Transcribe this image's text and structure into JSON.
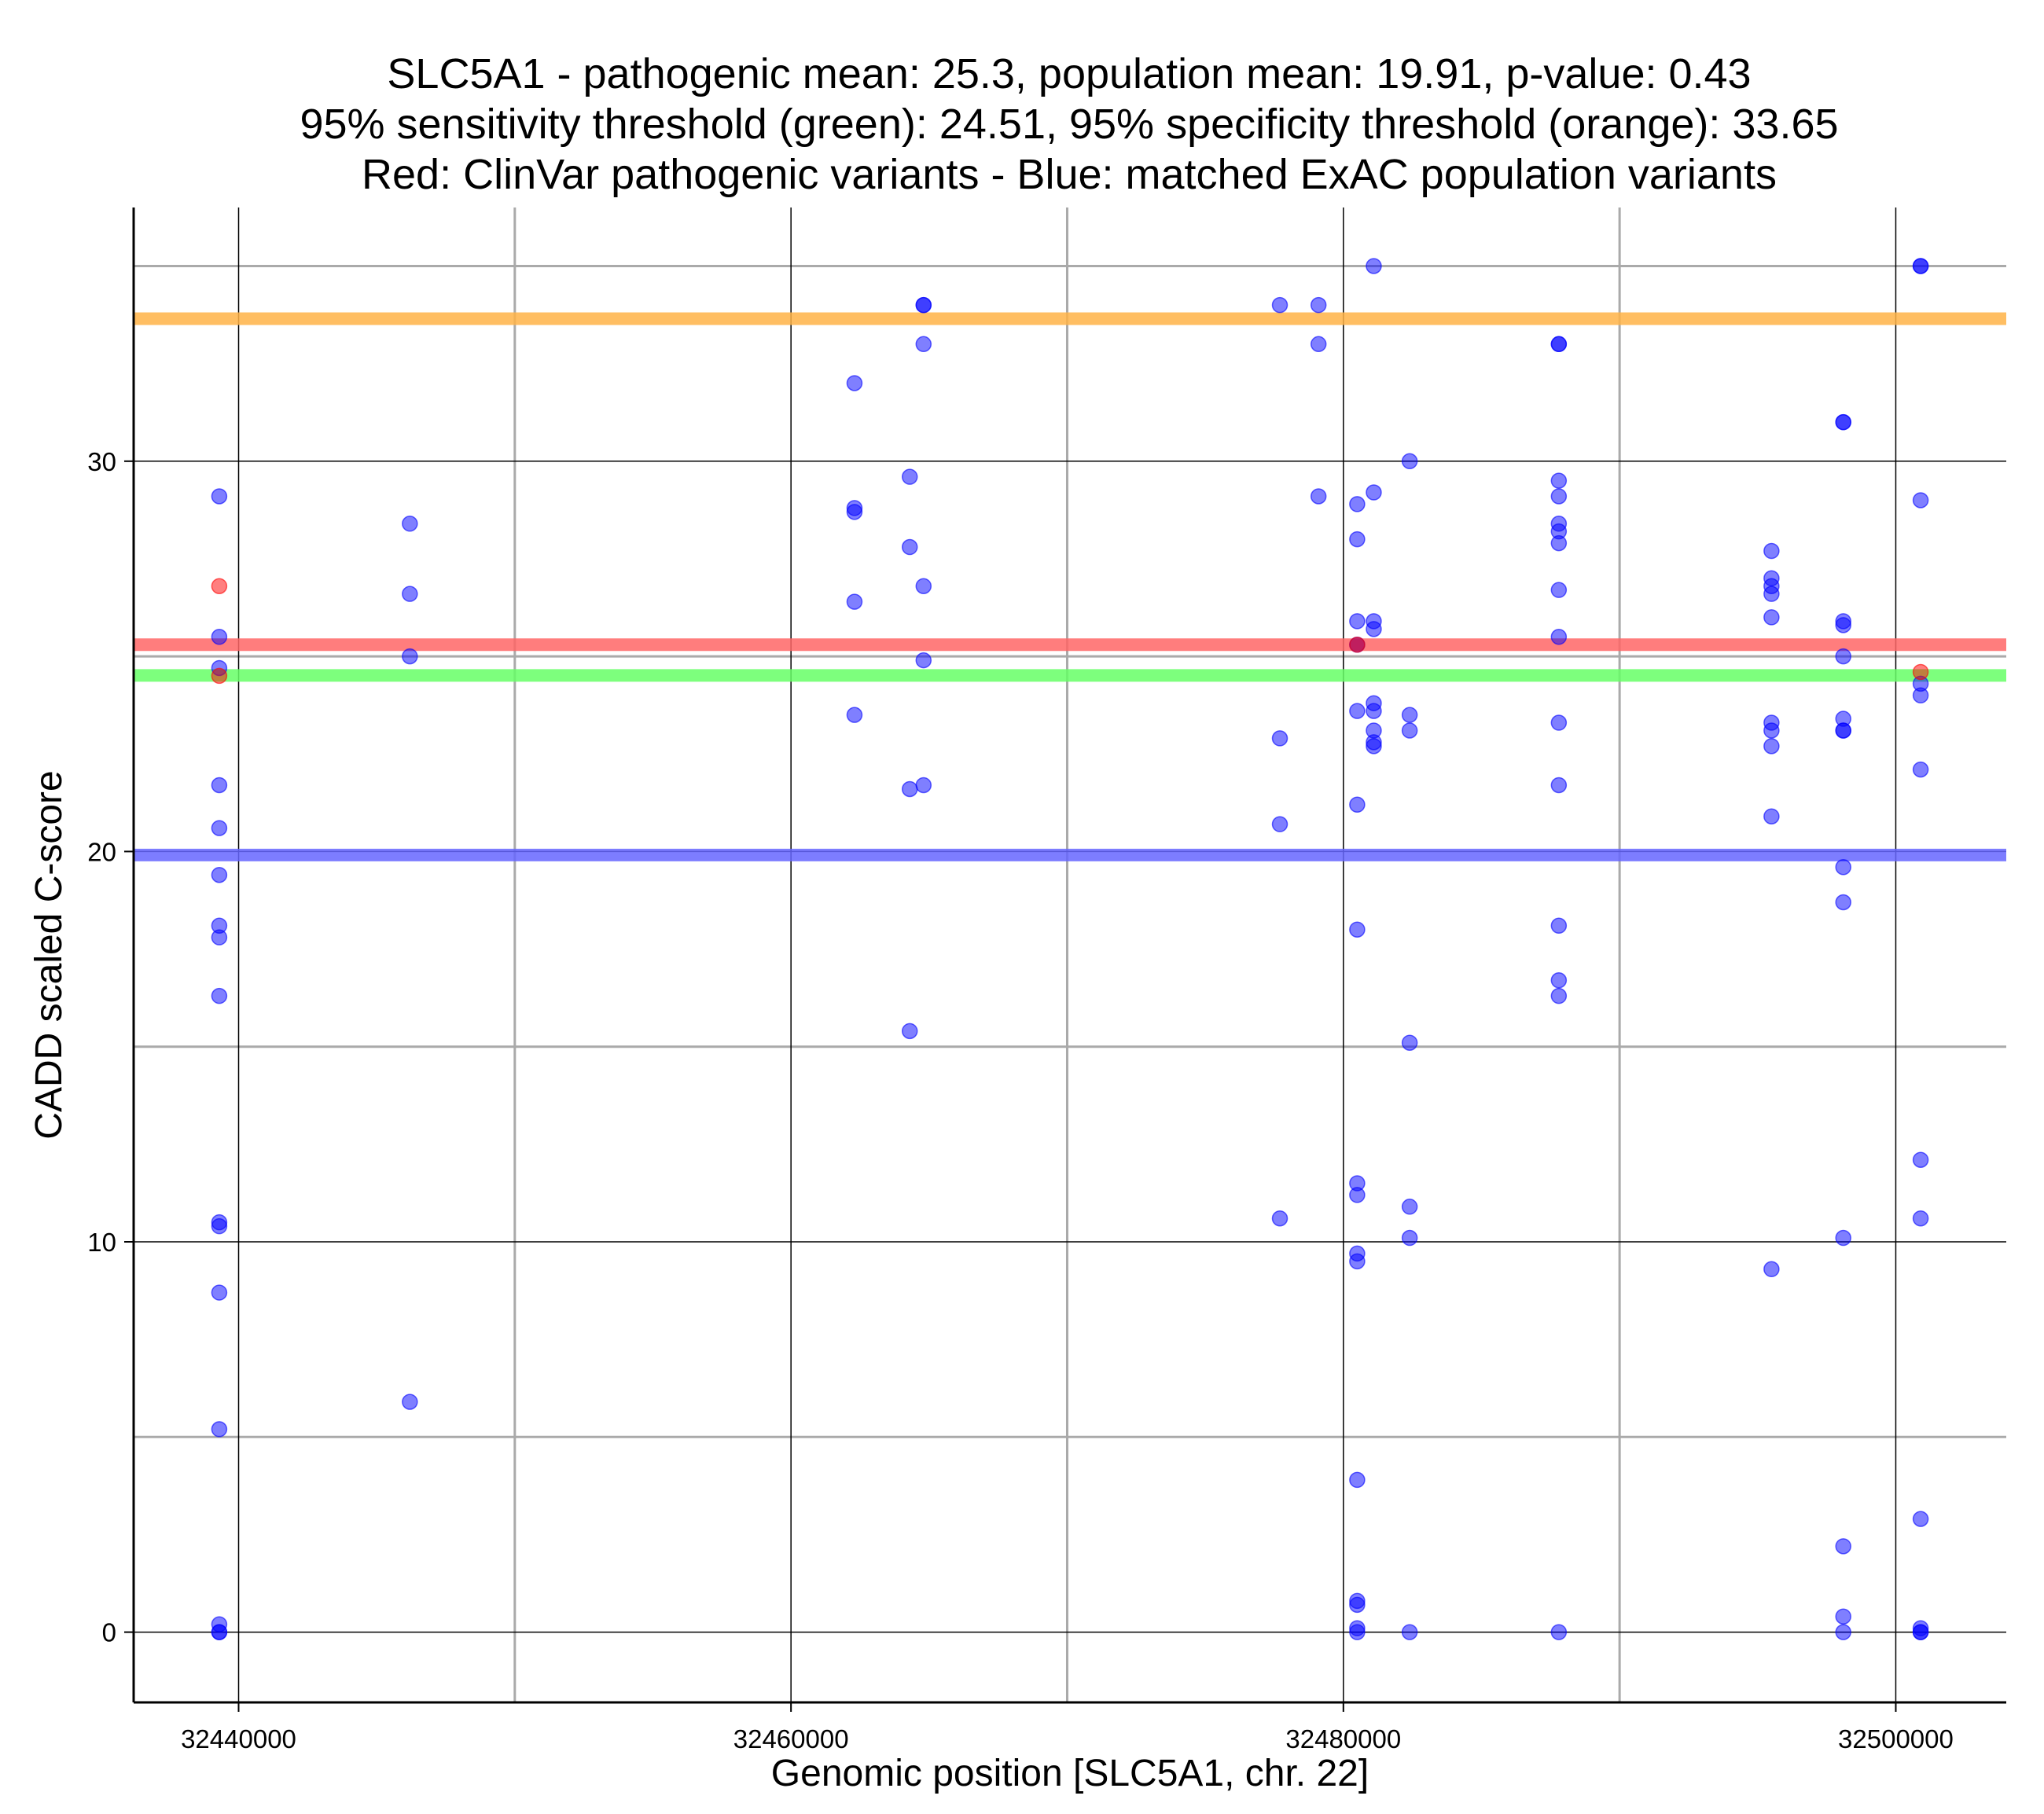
{
  "chart_data": {
    "type": "scatter",
    "title": [
      "SLC5A1 - pathogenic mean: 25.3, population mean: 19.91, p-value: 0.43",
      "95% sensitivity threshold (green): 24.51, 95% specificity threshold (orange): 33.65",
      "Red: ClinVar pathogenic variants - Blue: matched ExAC population variants"
    ],
    "xlabel": "Genomic position [SLC5A1, chr. 22]",
    "ylabel": "CADD scaled C-score",
    "xlim": [
      32436200,
      32504000
    ],
    "ylim": [
      -1.8,
      36.5
    ],
    "x_ticks": [
      32440000,
      32460000,
      32480000,
      32500000
    ],
    "x_tick_labels": [
      "32440000",
      "32460000",
      "32480000",
      "32500000"
    ],
    "y_ticks": [
      0,
      10,
      20,
      30
    ],
    "y_tick_labels": [
      "0",
      "10",
      "20",
      "30"
    ],
    "grid": true,
    "colors": {
      "population": "#0000ff",
      "pathogenic": "#ff0000",
      "sensitivity": "#00ee00",
      "specificity": "#ff9900",
      "major_grid": "#000000",
      "minor_grid": "#aaaaaa"
    },
    "reference_lines": [
      {
        "y": 33.65,
        "color": "#ffb347"
      },
      {
        "y": 25.3,
        "color": "#ff6666"
      },
      {
        "y": 24.51,
        "color": "#66ff66"
      },
      {
        "y": 19.91,
        "color": "#6666ff"
      }
    ],
    "series": [
      {
        "color": "#0000ff",
        "points": [
          [
            32439300,
            29.1
          ],
          [
            32439300,
            25.5
          ],
          [
            32439300,
            24.7
          ],
          [
            32439300,
            21.7
          ],
          [
            32439300,
            20.6
          ],
          [
            32439300,
            19.4
          ],
          [
            32439300,
            18.1
          ],
          [
            32439300,
            17.8
          ],
          [
            32439300,
            16.3
          ],
          [
            32439300,
            10.5
          ],
          [
            32439300,
            10.4
          ],
          [
            32439300,
            8.7
          ],
          [
            32439300,
            5.2
          ],
          [
            32439300,
            0.2
          ],
          [
            32439300,
            0.0
          ],
          [
            32439300,
            0.0
          ],
          [
            32446200,
            28.4
          ],
          [
            32446200,
            26.6
          ],
          [
            32446200,
            25.0
          ],
          [
            32446200,
            5.9
          ],
          [
            32462300,
            32.0
          ],
          [
            32462300,
            28.8
          ],
          [
            32462300,
            28.7
          ],
          [
            32462300,
            26.4
          ],
          [
            32462300,
            23.5
          ],
          [
            32464300,
            29.6
          ],
          [
            32464300,
            27.8
          ],
          [
            32464300,
            21.6
          ],
          [
            32464300,
            15.4
          ],
          [
            32464800,
            34.0
          ],
          [
            32464800,
            34.0
          ],
          [
            32464800,
            33.0
          ],
          [
            32464800,
            26.8
          ],
          [
            32464800,
            24.9
          ],
          [
            32464800,
            21.7
          ],
          [
            32477700,
            34.0
          ],
          [
            32477700,
            22.9
          ],
          [
            32477700,
            20.7
          ],
          [
            32477700,
            10.6
          ],
          [
            32479100,
            34.0
          ],
          [
            32479100,
            33.0
          ],
          [
            32479100,
            29.1
          ],
          [
            32480500,
            28.9
          ],
          [
            32480500,
            28.0
          ],
          [
            32480500,
            25.9
          ],
          [
            32480500,
            25.3
          ],
          [
            32480500,
            23.6
          ],
          [
            32480500,
            21.2
          ],
          [
            32480500,
            18.0
          ],
          [
            32480500,
            11.5
          ],
          [
            32480500,
            11.2
          ],
          [
            32480500,
            9.7
          ],
          [
            32480500,
            9.5
          ],
          [
            32480500,
            3.9
          ],
          [
            32480500,
            0.8
          ],
          [
            32480500,
            0.7
          ],
          [
            32480500,
            0.1
          ],
          [
            32480500,
            0.0
          ],
          [
            32481100,
            35.0
          ],
          [
            32481100,
            29.2
          ],
          [
            32481100,
            25.9
          ],
          [
            32481100,
            25.7
          ],
          [
            32481100,
            23.8
          ],
          [
            32481100,
            23.6
          ],
          [
            32481100,
            23.1
          ],
          [
            32481100,
            22.8
          ],
          [
            32481100,
            22.7
          ],
          [
            32482400,
            30.0
          ],
          [
            32482400,
            23.5
          ],
          [
            32482400,
            23.1
          ],
          [
            32482400,
            15.1
          ],
          [
            32482400,
            10.9
          ],
          [
            32482400,
            10.1
          ],
          [
            32482400,
            0.0
          ],
          [
            32487800,
            33.0
          ],
          [
            32487800,
            33.0
          ],
          [
            32487800,
            29.5
          ],
          [
            32487800,
            29.1
          ],
          [
            32487800,
            28.4
          ],
          [
            32487800,
            28.2
          ],
          [
            32487800,
            27.9
          ],
          [
            32487800,
            26.7
          ],
          [
            32487800,
            25.5
          ],
          [
            32487800,
            23.3
          ],
          [
            32487800,
            21.7
          ],
          [
            32487800,
            18.1
          ],
          [
            32487800,
            16.7
          ],
          [
            32487800,
            16.3
          ],
          [
            32487800,
            0.0
          ],
          [
            32495500,
            27.7
          ],
          [
            32495500,
            27.0
          ],
          [
            32495500,
            26.8
          ],
          [
            32495500,
            26.6
          ],
          [
            32495500,
            26.0
          ],
          [
            32495500,
            23.3
          ],
          [
            32495500,
            23.1
          ],
          [
            32495500,
            22.7
          ],
          [
            32495500,
            20.9
          ],
          [
            32495500,
            9.3
          ],
          [
            32498100,
            31.0
          ],
          [
            32498100,
            31.0
          ],
          [
            32498100,
            25.9
          ],
          [
            32498100,
            25.8
          ],
          [
            32498100,
            25.0
          ],
          [
            32498100,
            23.4
          ],
          [
            32498100,
            23.1
          ],
          [
            32498100,
            23.1
          ],
          [
            32498100,
            19.6
          ],
          [
            32498100,
            18.7
          ],
          [
            32498100,
            10.1
          ],
          [
            32498100,
            2.2
          ],
          [
            32498100,
            0.4
          ],
          [
            32498100,
            0.0
          ],
          [
            32500900,
            35.0
          ],
          [
            32500900,
            35.0
          ],
          [
            32500900,
            29.0
          ],
          [
            32500900,
            24.3
          ],
          [
            32500900,
            24.0
          ],
          [
            32500900,
            22.1
          ],
          [
            32500900,
            12.1
          ],
          [
            32500900,
            10.6
          ],
          [
            32500900,
            2.9
          ],
          [
            32500900,
            0.1
          ],
          [
            32500900,
            0.0
          ],
          [
            32500900,
            0.0
          ]
        ]
      },
      {
        "color": "#ff0000",
        "points": [
          [
            32439300,
            26.8
          ],
          [
            32439300,
            24.5
          ],
          [
            32480500,
            25.3
          ],
          [
            32500900,
            24.6
          ]
        ]
      }
    ]
  }
}
